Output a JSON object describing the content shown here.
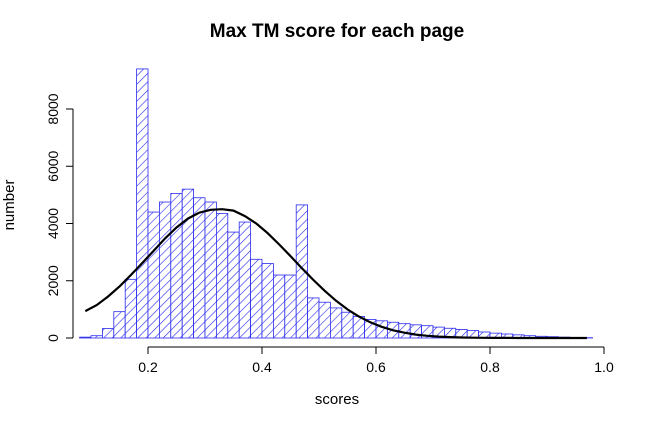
{
  "chart_data": {
    "type": "bar",
    "title": "Max TM score for each page",
    "xlabel": "scores",
    "ylabel": "number",
    "xlim": [
      0.08,
      0.98
    ],
    "ylim": [
      0,
      9400
    ],
    "x_ticks": [
      0.2,
      0.4,
      0.6,
      0.8,
      1.0
    ],
    "x_tick_labels": [
      "0.2",
      "0.4",
      "0.6",
      "0.8",
      "1.0"
    ],
    "y_ticks": [
      0,
      2000,
      4000,
      6000,
      8000
    ],
    "y_tick_labels": [
      "0",
      "2000",
      "4000",
      "6000",
      "8000"
    ],
    "bin_width": 0.02,
    "bin_starts": [
      0.08,
      0.1,
      0.12,
      0.14,
      0.16,
      0.18,
      0.2,
      0.22,
      0.24,
      0.26,
      0.28,
      0.3,
      0.32,
      0.34,
      0.36,
      0.38,
      0.4,
      0.42,
      0.44,
      0.46,
      0.48,
      0.5,
      0.52,
      0.54,
      0.56,
      0.58,
      0.6,
      0.62,
      0.64,
      0.66,
      0.68,
      0.7,
      0.72,
      0.74,
      0.76,
      0.78,
      0.8,
      0.82,
      0.84,
      0.86,
      0.88,
      0.9,
      0.92,
      0.94,
      0.96
    ],
    "values": [
      30,
      80,
      330,
      920,
      2050,
      9400,
      4400,
      4750,
      5050,
      5200,
      4900,
      4750,
      4350,
      3700,
      4050,
      2750,
      2600,
      2200,
      2200,
      4650,
      1400,
      1250,
      1050,
      900,
      750,
      650,
      600,
      550,
      500,
      460,
      430,
      380,
      340,
      300,
      260,
      210,
      170,
      140,
      110,
      80,
      60,
      45,
      30,
      20,
      10
    ],
    "fit_curve": {
      "type": "normal",
      "x": [
        0.09,
        0.11,
        0.13,
        0.15,
        0.17,
        0.19,
        0.21,
        0.23,
        0.25,
        0.27,
        0.29,
        0.31,
        0.33,
        0.35,
        0.37,
        0.39,
        0.41,
        0.43,
        0.45,
        0.47,
        0.49,
        0.51,
        0.53,
        0.55,
        0.57,
        0.59,
        0.61,
        0.63,
        0.65,
        0.67,
        0.69,
        0.71,
        0.73,
        0.75,
        0.77,
        0.79,
        0.81,
        0.83,
        0.85,
        0.87,
        0.89,
        0.91,
        0.93,
        0.95,
        0.97
      ],
      "y": [
        940,
        1150,
        1450,
        1800,
        2200,
        2620,
        3050,
        3480,
        3860,
        4170,
        4380,
        4480,
        4500,
        4450,
        4260,
        4000,
        3660,
        3270,
        2860,
        2440,
        2030,
        1650,
        1300,
        1000,
        750,
        550,
        390,
        270,
        185,
        120,
        78,
        50,
        31,
        19,
        11,
        6,
        4,
        2,
        1,
        0,
        0,
        0,
        0,
        0,
        0
      ]
    },
    "bar_pattern": "diagonal-hatch",
    "bar_color": "#2a2af0",
    "curve_color": "#000000",
    "grid": false,
    "legend": "none"
  }
}
